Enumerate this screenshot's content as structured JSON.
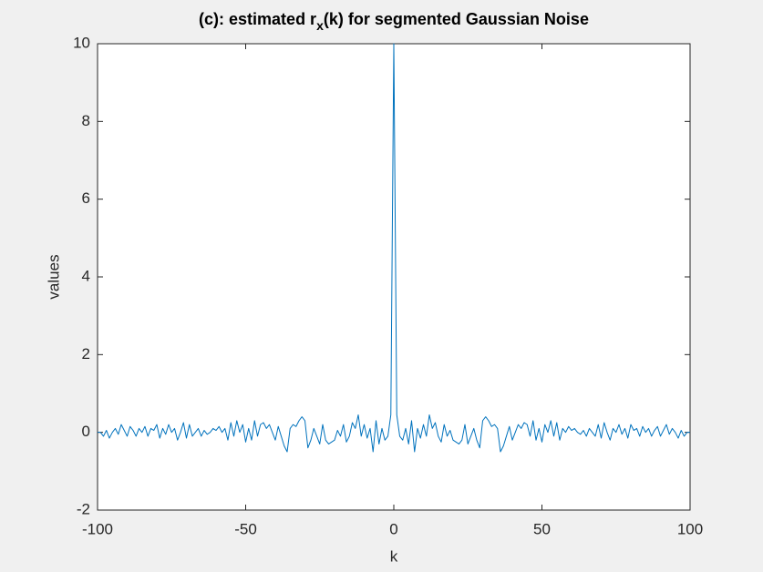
{
  "chart_data": {
    "type": "line",
    "title": [
      "(c): estimated r",
      "x",
      "(k) for segmented Gaussian Noise"
    ],
    "xlabel": "k",
    "ylabel": "values",
    "xlim": [
      -100,
      100
    ],
    "xticks": [
      -100,
      -50,
      0,
      50,
      100
    ],
    "ylim": [
      -2,
      10
    ],
    "yticks": [
      -2,
      0,
      2,
      4,
      6,
      8,
      10
    ],
    "color": "#0072bd",
    "x": [
      -100,
      -99,
      -98,
      -97,
      -96,
      -95,
      -94,
      -93,
      -92,
      -91,
      -90,
      -89,
      -88,
      -87,
      -86,
      -85,
      -84,
      -83,
      -82,
      -81,
      -80,
      -79,
      -78,
      -77,
      -76,
      -75,
      -74,
      -73,
      -72,
      -71,
      -70,
      -69,
      -68,
      -67,
      -66,
      -65,
      -64,
      -63,
      -62,
      -61,
      -60,
      -59,
      -58,
      -57,
      -56,
      -55,
      -54,
      -53,
      -52,
      -51,
      -50,
      -49,
      -48,
      -47,
      -46,
      -45,
      -44,
      -43,
      -42,
      -41,
      -40,
      -39,
      -38,
      -37,
      -36,
      -35,
      -34,
      -33,
      -32,
      -31,
      -30,
      -29,
      -28,
      -27,
      -26,
      -25,
      -24,
      -23,
      -22,
      -21,
      -20,
      -19,
      -18,
      -17,
      -16,
      -15,
      -14,
      -13,
      -12,
      -11,
      -10,
      -9,
      -8,
      -7,
      -6,
      -5,
      -4,
      -3,
      -2,
      -1,
      0,
      1,
      2,
      3,
      4,
      5,
      6,
      7,
      8,
      9,
      10,
      11,
      12,
      13,
      14,
      15,
      16,
      17,
      18,
      19,
      20,
      21,
      22,
      23,
      24,
      25,
      26,
      27,
      28,
      29,
      30,
      31,
      32,
      33,
      34,
      35,
      36,
      37,
      38,
      39,
      40,
      41,
      42,
      43,
      44,
      45,
      46,
      47,
      48,
      49,
      50,
      51,
      52,
      53,
      54,
      55,
      56,
      57,
      58,
      59,
      60,
      61,
      62,
      63,
      64,
      65,
      66,
      67,
      68,
      69,
      70,
      71,
      72,
      73,
      74,
      75,
      76,
      77,
      78,
      79,
      80,
      81,
      82,
      83,
      84,
      85,
      86,
      87,
      88,
      89,
      90,
      91,
      92,
      93,
      94,
      95,
      96,
      97,
      98,
      99,
      100
    ],
    "values": [
      0,
      0,
      -0.1,
      0.05,
      -0.15,
      0,
      0.1,
      -0.05,
      0.2,
      0.05,
      -0.1,
      0.15,
      0.05,
      -0.1,
      0.1,
      0,
      0.15,
      -0.1,
      0.1,
      0.05,
      0.2,
      -0.15,
      0.1,
      -0.05,
      0.2,
      0,
      0.1,
      -0.2,
      0,
      0.25,
      -0.15,
      0.2,
      -0.1,
      0,
      0.1,
      -0.1,
      0.05,
      -0.05,
      0,
      0.1,
      0.05,
      0.15,
      0,
      0.1,
      -0.2,
      0.25,
      -0.1,
      0.3,
      0,
      0.2,
      -0.25,
      0.1,
      -0.2,
      0.3,
      -0.1,
      0.2,
      0.25,
      0.1,
      0.2,
      0,
      -0.2,
      0.15,
      -0.1,
      -0.35,
      -0.5,
      0.1,
      0.2,
      0.15,
      0.3,
      0.4,
      0.3,
      -0.4,
      -0.2,
      0.1,
      -0.1,
      -0.3,
      0.2,
      -0.2,
      -0.3,
      -0.25,
      -0.2,
      0.05,
      -0.1,
      0.2,
      -0.25,
      -0.1,
      0.25,
      0.1,
      0.45,
      -0.1,
      0.2,
      -0.15,
      0.1,
      -0.5,
      0.3,
      -0.3,
      0.1,
      -0.2,
      -0.1,
      0.45,
      10,
      0.45,
      -0.1,
      -0.2,
      0.1,
      -0.3,
      0.3,
      -0.5,
      0.1,
      -0.15,
      0.2,
      -0.1,
      0.45,
      0.1,
      0.25,
      -0.1,
      -0.25,
      0.2,
      -0.1,
      0.05,
      -0.2,
      -0.25,
      -0.3,
      -0.2,
      0.2,
      -0.3,
      -0.1,
      0.1,
      -0.2,
      -0.4,
      0.3,
      0.4,
      0.3,
      0.15,
      0.2,
      0.1,
      -0.5,
      -0.35,
      -0.1,
      0.15,
      -0.2,
      0,
      0.2,
      0.1,
      0.25,
      0.2,
      -0.1,
      0.3,
      -0.2,
      0.1,
      -0.25,
      0.2,
      0,
      0.3,
      -0.1,
      0.25,
      -0.2,
      0.1,
      0,
      0.15,
      0.05,
      0.1,
      0,
      -0.05,
      0.05,
      -0.1,
      0.1,
      0,
      -0.1,
      0.2,
      -0.15,
      0.25,
      0,
      -0.2,
      0.1,
      0,
      0.2,
      -0.05,
      0.1,
      -0.15,
      0.2,
      0.05,
      0.1,
      -0.1,
      0.15,
      0,
      0.1,
      -0.1,
      0.05,
      0.15,
      -0.1,
      0.05,
      0.2,
      -0.05,
      0.1,
      0,
      -0.15,
      0.05,
      -0.1,
      0,
      0
    ]
  }
}
